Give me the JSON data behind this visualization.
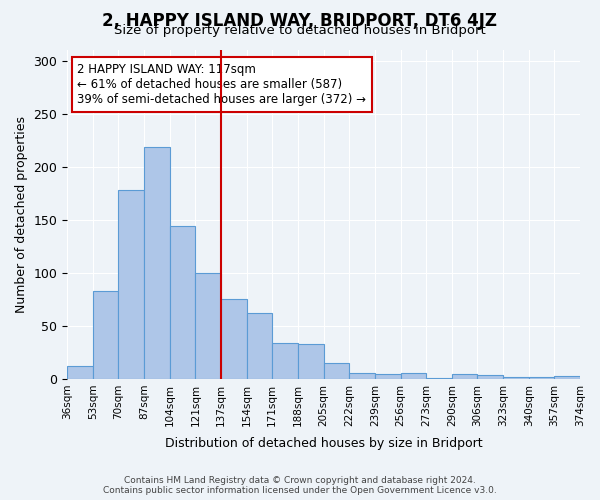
{
  "title": "2, HAPPY ISLAND WAY, BRIDPORT, DT6 4JZ",
  "subtitle": "Size of property relative to detached houses in Bridport",
  "xlabel": "Distribution of detached houses by size in Bridport",
  "ylabel": "Number of detached properties",
  "categories": [
    "36sqm",
    "53sqm",
    "70sqm",
    "87sqm",
    "104sqm",
    "121sqm",
    "137sqm",
    "154sqm",
    "171sqm",
    "188sqm",
    "205sqm",
    "222sqm",
    "239sqm",
    "256sqm",
    "273sqm",
    "290sqm",
    "306sqm",
    "323sqm",
    "340sqm",
    "357sqm",
    "374sqm"
  ],
  "values": [
    12,
    83,
    178,
    219,
    144,
    100,
    75,
    62,
    34,
    33,
    15,
    6,
    5,
    6,
    1,
    5,
    4,
    2,
    2,
    3
  ],
  "bar_color": "#aec6e8",
  "bar_edge_color": "#5b9bd5",
  "vline_x": 5.5,
  "vline_color": "#cc0000",
  "annotation_text": "2 HAPPY ISLAND WAY: 117sqm\n← 61% of detached houses are smaller (587)\n39% of semi-detached houses are larger (372) →",
  "annotation_box_color": "#ffffff",
  "annotation_box_edge_color": "#cc0000",
  "ylim": [
    0,
    310
  ],
  "yticks": [
    0,
    50,
    100,
    150,
    200,
    250,
    300
  ],
  "footer_text": "Contains HM Land Registry data © Crown copyright and database right 2024.\nContains public sector information licensed under the Open Government Licence v3.0.",
  "bg_color": "#eef3f8",
  "plot_bg_color": "#eef3f8"
}
